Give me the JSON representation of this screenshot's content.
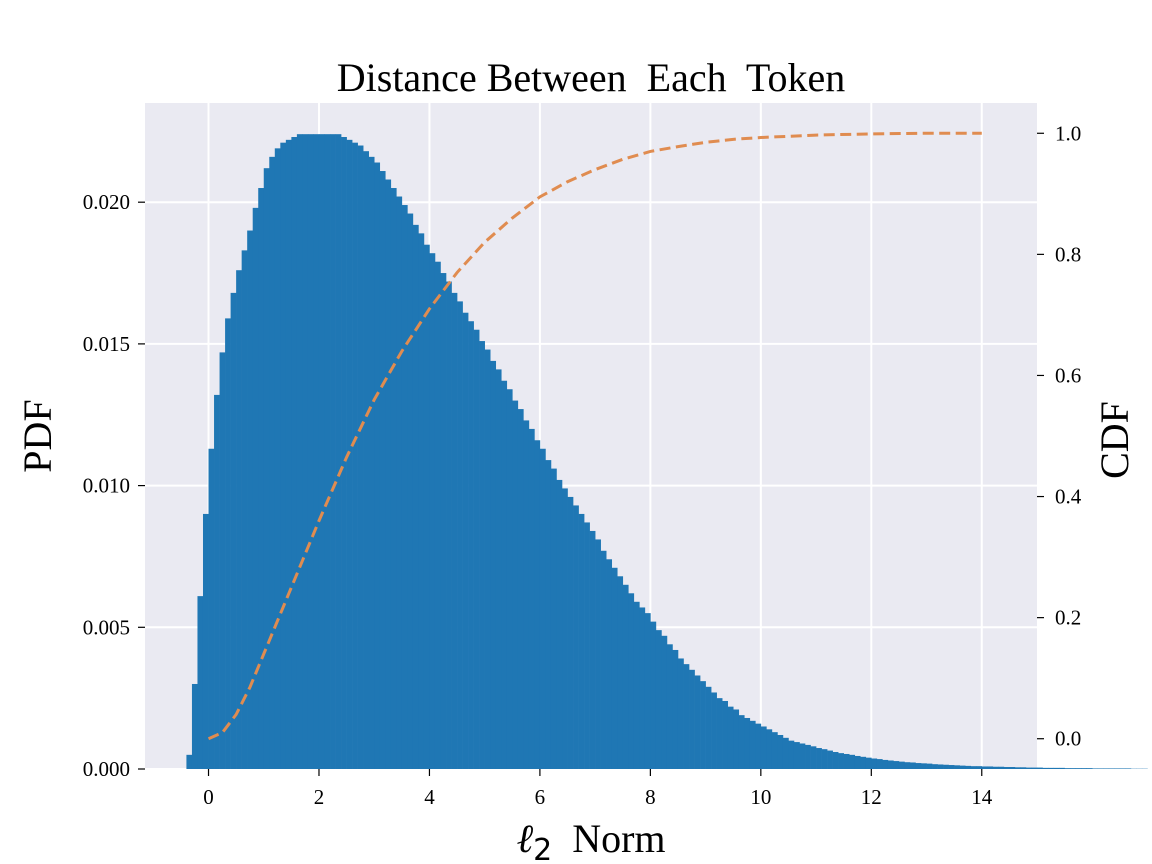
{
  "chart_data": {
    "type": "bar",
    "title": "Distance Between  Each  Token",
    "xlabel_italic": "ℓ",
    "xlabel_sub": "2",
    "xlabel_rest": "Norm",
    "ylabel": "PDF",
    "y2label": "CDF",
    "xlim": [
      -1.15,
      15.0
    ],
    "ylim": [
      0,
      0.0235
    ],
    "y2lim": [
      -0.05,
      1.05
    ],
    "x_ticks": [
      0,
      2,
      4,
      6,
      8,
      10,
      12,
      14
    ],
    "x_tick_labels": [
      "0",
      "2",
      "4",
      "6",
      "8",
      "10",
      "12",
      "14"
    ],
    "y_ticks": [
      0.0,
      0.005,
      0.01,
      0.015,
      0.02
    ],
    "y_tick_labels": [
      "0.000",
      "0.005",
      "0.010",
      "0.015",
      "0.020"
    ],
    "y2_ticks": [
      0.0,
      0.2,
      0.4,
      0.6,
      0.8,
      1.0
    ],
    "y2_tick_labels": [
      "0.0",
      "0.2",
      "0.4",
      "0.6",
      "0.8",
      "1.0"
    ],
    "grid": true,
    "colors": {
      "background": "#eaeaf2",
      "grid": "#ffffff",
      "histogram": "#1f77b4",
      "cdf": "#e08c50"
    },
    "histogram": {
      "bin_start": -0.4,
      "bin_width": 0.1,
      "values": [
        0.0005,
        0.003,
        0.0061,
        0.009,
        0.0113,
        0.0132,
        0.0147,
        0.0159,
        0.0168,
        0.0176,
        0.0183,
        0.019,
        0.0198,
        0.0205,
        0.0212,
        0.0216,
        0.0219,
        0.0221,
        0.0222,
        0.0223,
        0.0224,
        0.0224,
        0.0224,
        0.0224,
        0.0224,
        0.0224,
        0.0224,
        0.0224,
        0.0223,
        0.0222,
        0.0221,
        0.022,
        0.0218,
        0.0216,
        0.0214,
        0.0211,
        0.0208,
        0.0205,
        0.0202,
        0.0199,
        0.0196,
        0.0192,
        0.0189,
        0.0185,
        0.0182,
        0.0179,
        0.0175,
        0.0172,
        0.0168,
        0.0165,
        0.0161,
        0.0158,
        0.0155,
        0.0151,
        0.0148,
        0.0144,
        0.0141,
        0.0137,
        0.0134,
        0.013,
        0.0127,
        0.0123,
        0.012,
        0.0116,
        0.0113,
        0.0109,
        0.0106,
        0.0102,
        0.0099,
        0.0096,
        0.0093,
        0.009,
        0.0087,
        0.0084,
        0.0081,
        0.0077,
        0.0074,
        0.0071,
        0.0068,
        0.0065,
        0.0062,
        0.0059,
        0.0057,
        0.0055,
        0.0052,
        0.0049,
        0.0047,
        0.0044,
        0.0042,
        0.0039,
        0.0037,
        0.0035,
        0.0033,
        0.0031,
        0.0029,
        0.0027,
        0.0025,
        0.0024,
        0.0022,
        0.0021,
        0.0019,
        0.0018,
        0.0017,
        0.0016,
        0.0015,
        0.0014,
        0.0013,
        0.0012,
        0.0011,
        0.001,
        0.00095,
        0.0009,
        0.00085,
        0.0008,
        0.00074,
        0.0007,
        0.00065,
        0.0006,
        0.00056,
        0.00053,
        0.0005,
        0.00046,
        0.00043,
        0.0004,
        0.00037,
        0.00035,
        0.00032,
        0.0003,
        0.00028,
        0.00026,
        0.00024,
        0.00023,
        0.00021,
        0.0002,
        0.00019,
        0.00017,
        0.00016,
        0.00015,
        0.00014,
        0.00013,
        0.00012,
        0.00011,
        0.0001,
        0.0001,
        9e-05,
        9e-05,
        8e-05,
        8e-05,
        7e-05,
        7e-05,
        6e-05,
        6e-05,
        5e-05,
        5e-05,
        5e-05,
        4e-05,
        4e-05,
        4e-05,
        4e-05,
        3e-05,
        3e-05,
        3e-05,
        3e-05,
        3e-05,
        2e-05,
        2e-05,
        2e-05,
        2e-05,
        2e-05,
        2e-05,
        2e-05,
        1e-05,
        1e-05,
        1e-05
      ]
    },
    "cdf_curve": {
      "x": [
        0.0,
        0.25,
        0.5,
        0.75,
        1.0,
        1.25,
        1.5,
        1.75,
        2.0,
        2.5,
        3.0,
        3.5,
        4.0,
        4.5,
        5.0,
        5.5,
        6.0,
        6.5,
        7.0,
        7.5,
        8.0,
        8.5,
        9.0,
        9.5,
        10.0,
        11.0,
        12.0,
        13.0,
        14.0
      ],
      "y": [
        0.0,
        0.01,
        0.04,
        0.085,
        0.14,
        0.195,
        0.25,
        0.305,
        0.36,
        0.465,
        0.56,
        0.64,
        0.71,
        0.77,
        0.82,
        0.86,
        0.895,
        0.92,
        0.94,
        0.957,
        0.97,
        0.978,
        0.985,
        0.99,
        0.993,
        0.997,
        0.999,
        1.0,
        1.0
      ]
    }
  }
}
